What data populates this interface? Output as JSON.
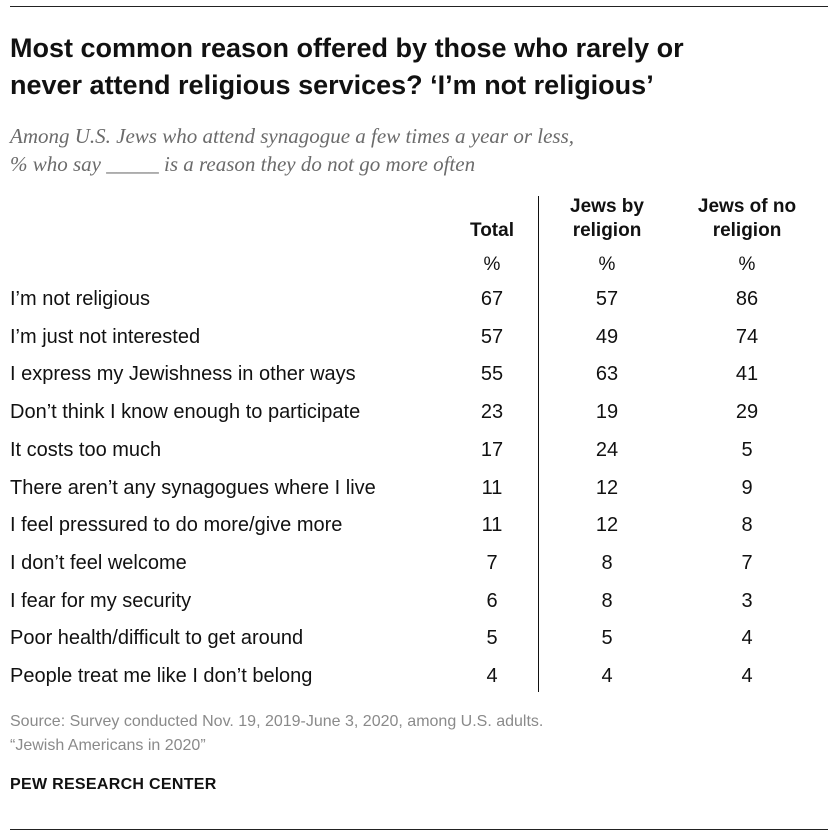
{
  "chart_data": {
    "type": "table",
    "title_line1": "Most common reason offered by those who rarely or",
    "title_line2": "never attend religious services? ‘I’m not religious’",
    "subtitle_line1": "Among U.S. Jews who attend synagogue a few times a year or less,",
    "subtitle_line2": "% who say _____ is a reason they do not go more often",
    "columns": [
      {
        "line1": "Total",
        "line2": "",
        "unit": "%"
      },
      {
        "line1": "Jews by",
        "line2": "religion",
        "unit": "%"
      },
      {
        "line1": "Jews of no",
        "line2": "religion",
        "unit": "%"
      }
    ],
    "rows": [
      {
        "label": "I’m not religious",
        "values": [
          67,
          57,
          86
        ]
      },
      {
        "label": "I’m just not interested",
        "values": [
          57,
          49,
          74
        ]
      },
      {
        "label": "I express my Jewishness in other ways",
        "values": [
          55,
          63,
          41
        ]
      },
      {
        "label": "Don’t think I know enough to participate",
        "values": [
          23,
          19,
          29
        ]
      },
      {
        "label": "It costs too much",
        "values": [
          17,
          24,
          5
        ]
      },
      {
        "label": "There aren’t any synagogues where I live",
        "values": [
          11,
          12,
          9
        ]
      },
      {
        "label": "I feel pressured to do more/give more",
        "values": [
          11,
          12,
          8
        ]
      },
      {
        "label": "I don’t feel welcome",
        "values": [
          7,
          8,
          7
        ]
      },
      {
        "label": "I fear for my security",
        "values": [
          6,
          8,
          3
        ]
      },
      {
        "label": "Poor health/difficult to get around",
        "values": [
          5,
          5,
          4
        ]
      },
      {
        "label": "People treat me like I don’t belong",
        "values": [
          4,
          4,
          4
        ]
      }
    ],
    "source_line1": "Source: Survey conducted Nov. 19, 2019-June 3, 2020, among U.S. adults.",
    "source_line2": "“Jewish Americans in 2020”",
    "brand": "PEW RESEARCH CENTER"
  }
}
